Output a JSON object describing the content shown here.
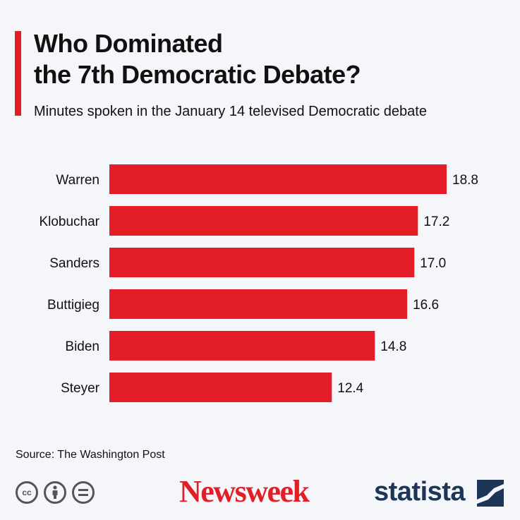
{
  "header": {
    "title_line1": "Who Dominated",
    "title_line2": "the 7th Democratic Debate?",
    "subtitle": "Minutes spoken in the January 14 televised Democratic debate"
  },
  "footer": {
    "source": "Source: The Washington Post",
    "newsweek_logo": "Newsweek",
    "statista_logo": "statista",
    "cc_icons": [
      "cc-icon",
      "attribution-icon",
      "no-derivatives-icon"
    ]
  },
  "colors": {
    "bar": "#e31e26",
    "accent": "#e31e26",
    "statista": "#1d3557"
  },
  "chart_data": {
    "type": "bar",
    "orientation": "horizontal",
    "categories": [
      "Warren",
      "Klobuchar",
      "Sanders",
      "Buttigieg",
      "Biden",
      "Steyer"
    ],
    "values": [
      18.8,
      17.2,
      17.0,
      16.6,
      14.8,
      12.4
    ],
    "value_labels": [
      "18.8",
      "17.2",
      "17.0",
      "16.6",
      "14.8",
      "12.4"
    ],
    "grid": false,
    "legend": "none"
  }
}
